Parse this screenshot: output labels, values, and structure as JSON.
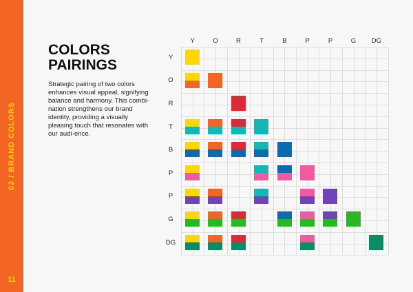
{
  "sidebar": {
    "section_label": "02 / BRAND COLORS",
    "page_number": "11"
  },
  "heading": {
    "line1": "COLORS",
    "line2": "PAIRINGS"
  },
  "description": "Strategic pairing of two colors enhances visual appeal, signifying balance and harmony. This combi-nation strengthens our brand identity, providing a visually pleasing touch that resonates with our audi-ence.",
  "grid": {
    "columns": [
      "Y",
      "O",
      "R",
      "T",
      "B",
      "P",
      "P",
      "G",
      "DG"
    ],
    "rows": [
      "Y",
      "O",
      "R",
      "T",
      "B",
      "P",
      "P",
      "G",
      "DG"
    ],
    "colors": {
      "Y": "#ffd600",
      "O": "#f26522",
      "R": "#dc2a37",
      "T": "#13b8b6",
      "B": "#0a6bb3",
      "P1": "#ef5ba1",
      "P2": "#7043b6",
      "G": "#27b824",
      "DG": "#0f8a64"
    },
    "color_keys": [
      "Y",
      "O",
      "R",
      "T",
      "B",
      "P1",
      "P2",
      "G",
      "DG"
    ],
    "pairs": [
      [
        0,
        0
      ],
      [
        1,
        0
      ],
      [
        1,
        1
      ],
      [
        2,
        2
      ],
      [
        3,
        0
      ],
      [
        3,
        1
      ],
      [
        3,
        2
      ],
      [
        3,
        3
      ],
      [
        4,
        0
      ],
      [
        4,
        1
      ],
      [
        4,
        2
      ],
      [
        4,
        3
      ],
      [
        4,
        4
      ],
      [
        5,
        0
      ],
      [
        5,
        3
      ],
      [
        5,
        4
      ],
      [
        5,
        5
      ],
      [
        6,
        0
      ],
      [
        6,
        1
      ],
      [
        6,
        3
      ],
      [
        6,
        5
      ],
      [
        6,
        6
      ],
      [
        7,
        0
      ],
      [
        7,
        1
      ],
      [
        7,
        2
      ],
      [
        7,
        4
      ],
      [
        7,
        5
      ],
      [
        7,
        6
      ],
      [
        7,
        7
      ],
      [
        8,
        0
      ],
      [
        8,
        1
      ],
      [
        8,
        2
      ],
      [
        8,
        5
      ],
      [
        8,
        8
      ]
    ]
  }
}
